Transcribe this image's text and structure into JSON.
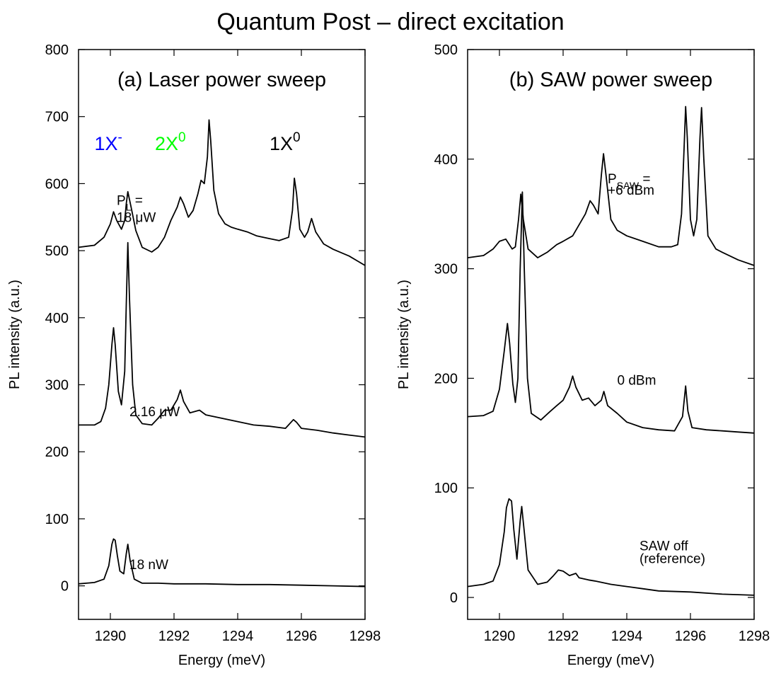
{
  "figure_title": "Quantum Post – direct excitation",
  "chart_data": [
    {
      "type": "line",
      "panel_title": "(a) Laser power sweep",
      "xlabel": "Energy (meV)",
      "ylabel": "PL intensity (a.u.)",
      "xlim": [
        1289,
        1298
      ],
      "ylim": [
        -50,
        800
      ],
      "xticks": [
        1290,
        1292,
        1294,
        1296,
        1298
      ],
      "yticks": [
        0,
        100,
        200,
        300,
        400,
        500,
        600,
        700,
        800
      ],
      "grid": false,
      "peak_labels": [
        {
          "base": "1X",
          "sup": "-",
          "color": "#0000ff"
        },
        {
          "base": "2X",
          "sup": "0",
          "color": "#00ff00"
        },
        {
          "base": "1X",
          "sup": "0",
          "color": "#000000"
        }
      ],
      "series": [
        {
          "label_lines": [
            {
              "main": "P",
              "sub": "L",
              "rest": " ="
            },
            {
              "main": "18 μW"
            }
          ],
          "points": [
            [
              1289.0,
              505
            ],
            [
              1289.5,
              508
            ],
            [
              1289.8,
              520
            ],
            [
              1290.0,
              540
            ],
            [
              1290.1,
              558
            ],
            [
              1290.2,
              545
            ],
            [
              1290.35,
              532
            ],
            [
              1290.45,
              545
            ],
            [
              1290.5,
              570
            ],
            [
              1290.55,
              588
            ],
            [
              1290.65,
              565
            ],
            [
              1290.8,
              530
            ],
            [
              1291.0,
              505
            ],
            [
              1291.3,
              498
            ],
            [
              1291.5,
              505
            ],
            [
              1291.7,
              520
            ],
            [
              1291.9,
              545
            ],
            [
              1292.1,
              565
            ],
            [
              1292.2,
              580
            ],
            [
              1292.3,
              570
            ],
            [
              1292.45,
              550
            ],
            [
              1292.6,
              560
            ],
            [
              1292.75,
              585
            ],
            [
              1292.85,
              605
            ],
            [
              1292.95,
              600
            ],
            [
              1293.05,
              640
            ],
            [
              1293.1,
              695
            ],
            [
              1293.15,
              665
            ],
            [
              1293.25,
              590
            ],
            [
              1293.4,
              555
            ],
            [
              1293.6,
              540
            ],
            [
              1293.8,
              535
            ],
            [
              1294.0,
              532
            ],
            [
              1294.3,
              528
            ],
            [
              1294.6,
              522
            ],
            [
              1295.0,
              518
            ],
            [
              1295.3,
              515
            ],
            [
              1295.6,
              520
            ],
            [
              1295.72,
              560
            ],
            [
              1295.78,
              608
            ],
            [
              1295.85,
              585
            ],
            [
              1295.95,
              532
            ],
            [
              1296.1,
              520
            ],
            [
              1296.2,
              528
            ],
            [
              1296.32,
              548
            ],
            [
              1296.45,
              528
            ],
            [
              1296.7,
              510
            ],
            [
              1297.0,
              502
            ],
            [
              1297.5,
              492
            ],
            [
              1298.0,
              478
            ]
          ]
        },
        {
          "label_lines": [
            {
              "main": "2.16 μW"
            }
          ],
          "points": [
            [
              1289.0,
              240
            ],
            [
              1289.5,
              240
            ],
            [
              1289.7,
              245
            ],
            [
              1289.85,
              265
            ],
            [
              1289.95,
              300
            ],
            [
              1290.05,
              360
            ],
            [
              1290.1,
              385
            ],
            [
              1290.15,
              360
            ],
            [
              1290.25,
              290
            ],
            [
              1290.35,
              270
            ],
            [
              1290.45,
              320
            ],
            [
              1290.5,
              420
            ],
            [
              1290.55,
              512
            ],
            [
              1290.6,
              430
            ],
            [
              1290.7,
              300
            ],
            [
              1290.8,
              255
            ],
            [
              1291.0,
              242
            ],
            [
              1291.3,
              240
            ],
            [
              1291.5,
              250
            ],
            [
              1291.7,
              262
            ],
            [
              1291.9,
              262
            ],
            [
              1292.1,
              278
            ],
            [
              1292.2,
              292
            ],
            [
              1292.3,
              275
            ],
            [
              1292.5,
              258
            ],
            [
              1292.8,
              262
            ],
            [
              1293.0,
              255
            ],
            [
              1293.5,
              250
            ],
            [
              1294.0,
              245
            ],
            [
              1294.5,
              240
            ],
            [
              1295.0,
              238
            ],
            [
              1295.5,
              235
            ],
            [
              1295.75,
              248
            ],
            [
              1295.85,
              244
            ],
            [
              1296.0,
              235
            ],
            [
              1296.5,
              232
            ],
            [
              1297.0,
              228
            ],
            [
              1297.5,
              225
            ],
            [
              1298.0,
              222
            ]
          ]
        },
        {
          "label_lines": [
            {
              "main": "18 nW"
            }
          ],
          "points": [
            [
              1289.0,
              3
            ],
            [
              1289.5,
              5
            ],
            [
              1289.8,
              10
            ],
            [
              1289.95,
              30
            ],
            [
              1290.05,
              62
            ],
            [
              1290.1,
              70
            ],
            [
              1290.15,
              68
            ],
            [
              1290.22,
              45
            ],
            [
              1290.3,
              22
            ],
            [
              1290.42,
              18
            ],
            [
              1290.5,
              48
            ],
            [
              1290.55,
              62
            ],
            [
              1290.62,
              38
            ],
            [
              1290.75,
              10
            ],
            [
              1291.0,
              4
            ],
            [
              1291.5,
              4
            ],
            [
              1292.0,
              3
            ],
            [
              1293.0,
              3
            ],
            [
              1294.0,
              2
            ],
            [
              1295.0,
              2
            ],
            [
              1296.0,
              1
            ],
            [
              1297.0,
              0
            ],
            [
              1298.0,
              -1
            ]
          ]
        }
      ]
    },
    {
      "type": "line",
      "panel_title": "(b) SAW power sweep",
      "xlabel": "Energy (meV)",
      "ylabel": "PL intensity (a.u.)",
      "xlim": [
        1289,
        1298
      ],
      "ylim": [
        -20,
        500
      ],
      "xticks": [
        1290,
        1292,
        1294,
        1296,
        1298
      ],
      "yticks": [
        0,
        100,
        200,
        300,
        400,
        500
      ],
      "grid": false,
      "series": [
        {
          "label_lines": [
            {
              "main": "P",
              "sub": "SAW",
              "rest": " ="
            },
            {
              "main": "+6 dBm"
            }
          ],
          "points": [
            [
              1289.0,
              310
            ],
            [
              1289.5,
              312
            ],
            [
              1289.8,
              318
            ],
            [
              1290.0,
              325
            ],
            [
              1290.2,
              327
            ],
            [
              1290.4,
              318
            ],
            [
              1290.5,
              320
            ],
            [
              1290.6,
              345
            ],
            [
              1290.67,
              368
            ],
            [
              1290.75,
              345
            ],
            [
              1290.9,
              318
            ],
            [
              1291.2,
              310
            ],
            [
              1291.5,
              315
            ],
            [
              1291.8,
              322
            ],
            [
              1292.0,
              325
            ],
            [
              1292.3,
              330
            ],
            [
              1292.5,
              340
            ],
            [
              1292.7,
              350
            ],
            [
              1292.85,
              362
            ],
            [
              1292.95,
              358
            ],
            [
              1293.1,
              350
            ],
            [
              1293.2,
              385
            ],
            [
              1293.27,
              405
            ],
            [
              1293.35,
              385
            ],
            [
              1293.5,
              345
            ],
            [
              1293.7,
              335
            ],
            [
              1294.0,
              330
            ],
            [
              1294.5,
              325
            ],
            [
              1295.0,
              320
            ],
            [
              1295.4,
              320
            ],
            [
              1295.6,
              322
            ],
            [
              1295.72,
              350
            ],
            [
              1295.8,
              410
            ],
            [
              1295.85,
              448
            ],
            [
              1295.9,
              420
            ],
            [
              1296.0,
              345
            ],
            [
              1296.1,
              330
            ],
            [
              1296.2,
              345
            ],
            [
              1296.3,
              420
            ],
            [
              1296.35,
              447
            ],
            [
              1296.42,
              400
            ],
            [
              1296.55,
              330
            ],
            [
              1296.8,
              318
            ],
            [
              1297.0,
              315
            ],
            [
              1297.5,
              308
            ],
            [
              1298.0,
              303
            ]
          ]
        },
        {
          "label_lines": [
            {
              "main": "0 dBm"
            }
          ],
          "points": [
            [
              1289.0,
              165
            ],
            [
              1289.5,
              166
            ],
            [
              1289.8,
              170
            ],
            [
              1290.0,
              190
            ],
            [
              1290.15,
              225
            ],
            [
              1290.25,
              250
            ],
            [
              1290.32,
              232
            ],
            [
              1290.42,
              195
            ],
            [
              1290.5,
              178
            ],
            [
              1290.58,
              200
            ],
            [
              1290.65,
              300
            ],
            [
              1290.72,
              370
            ],
            [
              1290.78,
              300
            ],
            [
              1290.88,
              200
            ],
            [
              1291.0,
              168
            ],
            [
              1291.3,
              162
            ],
            [
              1291.6,
              170
            ],
            [
              1291.8,
              175
            ],
            [
              1292.0,
              180
            ],
            [
              1292.2,
              192
            ],
            [
              1292.3,
              202
            ],
            [
              1292.4,
              192
            ],
            [
              1292.6,
              180
            ],
            [
              1292.8,
              182
            ],
            [
              1293.0,
              175
            ],
            [
              1293.2,
              180
            ],
            [
              1293.28,
              188
            ],
            [
              1293.4,
              175
            ],
            [
              1293.7,
              168
            ],
            [
              1294.0,
              160
            ],
            [
              1294.5,
              155
            ],
            [
              1295.0,
              153
            ],
            [
              1295.5,
              152
            ],
            [
              1295.75,
              165
            ],
            [
              1295.85,
              193
            ],
            [
              1295.92,
              170
            ],
            [
              1296.05,
              155
            ],
            [
              1296.5,
              153
            ],
            [
              1297.0,
              152
            ],
            [
              1297.5,
              151
            ],
            [
              1298.0,
              150
            ]
          ]
        },
        {
          "label_lines": [
            {
              "main": "SAW off"
            },
            {
              "main": "(reference)"
            }
          ],
          "points": [
            [
              1289.0,
              10
            ],
            [
              1289.5,
              12
            ],
            [
              1289.8,
              15
            ],
            [
              1290.0,
              30
            ],
            [
              1290.15,
              60
            ],
            [
              1290.22,
              82
            ],
            [
              1290.3,
              90
            ],
            [
              1290.38,
              88
            ],
            [
              1290.45,
              62
            ],
            [
              1290.55,
              35
            ],
            [
              1290.65,
              70
            ],
            [
              1290.7,
              83
            ],
            [
              1290.78,
              60
            ],
            [
              1290.9,
              25
            ],
            [
              1291.2,
              12
            ],
            [
              1291.5,
              14
            ],
            [
              1291.7,
              20
            ],
            [
              1291.85,
              25
            ],
            [
              1292.0,
              24
            ],
            [
              1292.2,
              20
            ],
            [
              1292.4,
              22
            ],
            [
              1292.5,
              18
            ],
            [
              1292.8,
              16
            ],
            [
              1293.0,
              15
            ],
            [
              1293.5,
              12
            ],
            [
              1294.0,
              10
            ],
            [
              1294.5,
              8
            ],
            [
              1295.0,
              6
            ],
            [
              1296.0,
              5
            ],
            [
              1297.0,
              3
            ],
            [
              1298.0,
              2
            ]
          ]
        }
      ]
    }
  ]
}
